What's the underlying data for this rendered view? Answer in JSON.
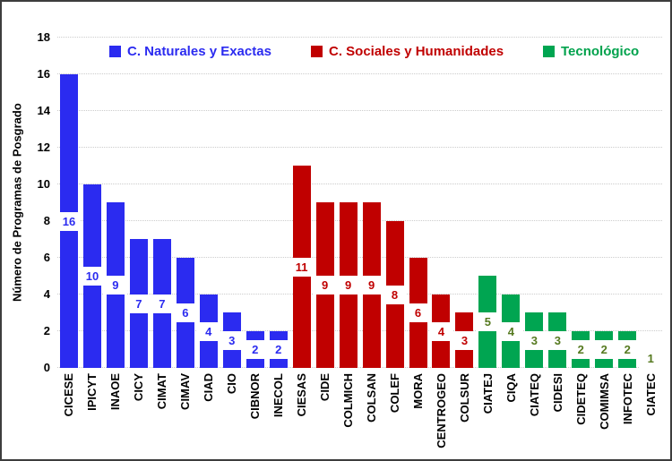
{
  "figure": {
    "background": "#ffffff",
    "border_color": "#3d3d3d"
  },
  "chart_data": {
    "type": "bar",
    "title": "",
    "xlabel": "",
    "ylabel": "Número de Programas de Posgrado",
    "ylim": [
      0,
      18
    ],
    "ytick_step": 2,
    "grid": "horizontal dotted light-gray",
    "legend_position": "top inside plot, horizontal",
    "value_labels": "centered inside bar on white box",
    "series": [
      {
        "name": "C. Naturales y Exactas",
        "color": "#2b2bf0",
        "legend_text_color": "#2b2bf0",
        "value_label_color": "#2b2bf0",
        "categories": [
          "CICESE",
          "IPICYT",
          "INAOE",
          "CICY",
          "CIMAT",
          "CIMAV",
          "CIAD",
          "CIO",
          "CIBNOR",
          "INECOL"
        ],
        "values": [
          16,
          10,
          9,
          7,
          7,
          6,
          4,
          3,
          2,
          2
        ]
      },
      {
        "name": "C. Sociales y Humanidades",
        "color": "#c00000",
        "legend_text_color": "#c00000",
        "value_label_color": "#c00000",
        "categories": [
          "CIESAS",
          "CIDE",
          "COLMICH",
          "COLSAN",
          "COLEF",
          "MORA",
          "CENTROGEO",
          "COLSUR"
        ],
        "values": [
          11,
          9,
          9,
          9,
          8,
          6,
          4,
          3
        ]
      },
      {
        "name": "Tecnológico",
        "color": "#00a551",
        "legend_text_color": "#00a24c",
        "value_label_color": "#55791f",
        "categories": [
          "CIATEJ",
          "CIQA",
          "CIATEQ",
          "CIDESI",
          "CIDETEQ",
          "COMIMSA",
          "INFOTEC",
          "CIATEC"
        ],
        "values": [
          5,
          4,
          3,
          3,
          2,
          2,
          2,
          1
        ]
      }
    ]
  }
}
